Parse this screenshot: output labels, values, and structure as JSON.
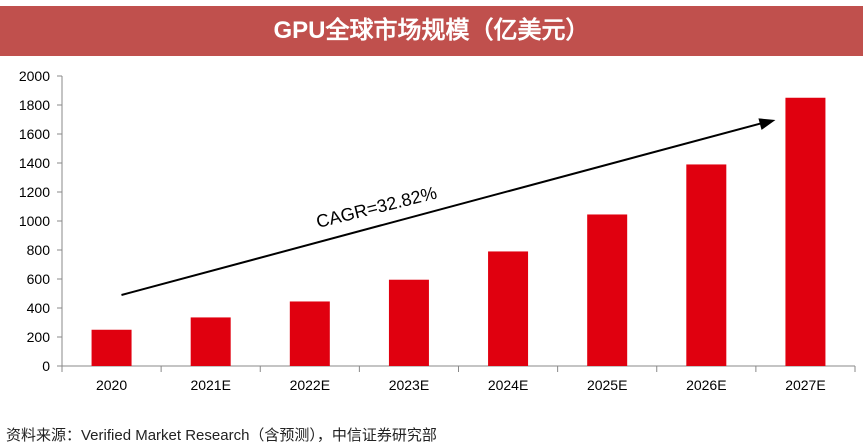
{
  "header": {
    "title": "GPU全球市场规模（亿美元）"
  },
  "chart_data": {
    "type": "bar",
    "title": "GPU全球市场规模（亿美元）",
    "categories": [
      "2020",
      "2021E",
      "2022E",
      "2023E",
      "2024E",
      "2025E",
      "2026E",
      "2027E"
    ],
    "values": [
      250,
      335,
      445,
      595,
      790,
      1045,
      1390,
      1850
    ],
    "ylim": [
      0,
      2000
    ],
    "yticks": [
      "0",
      "200",
      "400",
      "600",
      "800",
      "1000",
      "1200",
      "1400",
      "1600",
      "1800",
      "2000"
    ],
    "xlabel": "",
    "ylabel": "",
    "annotation": {
      "text": "CAGR=32.82%"
    },
    "colors": {
      "bar": "#e0000f",
      "header": "#c0504d",
      "axis": "#888888"
    }
  },
  "footer": {
    "source": "资料来源：Verified Market Research（含预测），中信证券研究部"
  }
}
